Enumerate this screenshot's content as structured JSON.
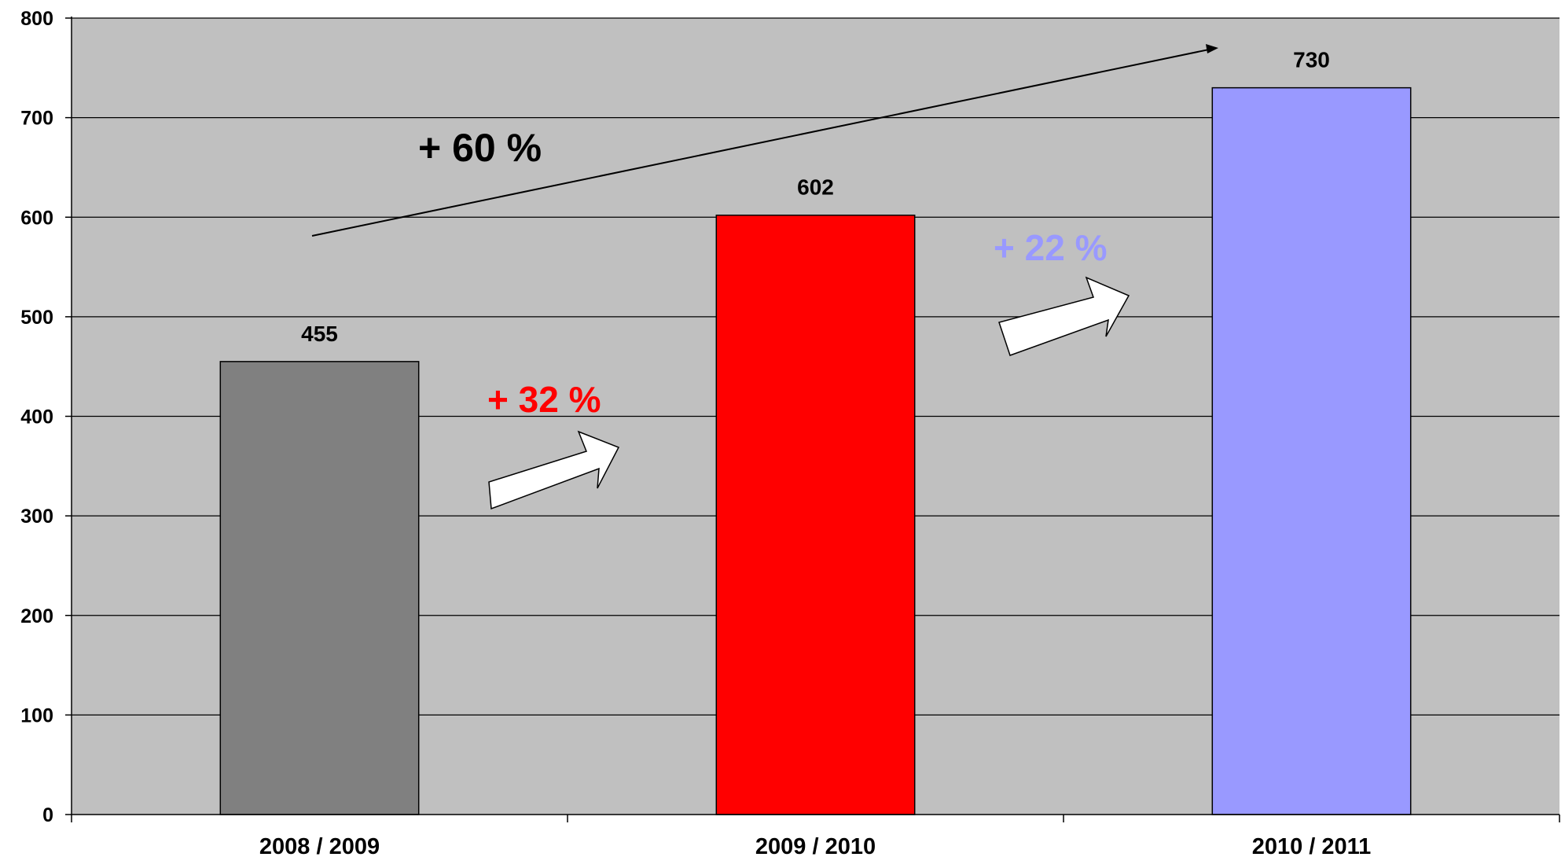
{
  "chart_data": {
    "type": "bar",
    "categories": [
      "2008 / 2009",
      "2009 / 2010",
      "2010 / 2011"
    ],
    "values": [
      455,
      602,
      730
    ],
    "data_labels": [
      "455",
      "602",
      "730"
    ],
    "bar_colors": [
      "#808080",
      "#ff0000",
      "#9999ff"
    ],
    "ylim": [
      0,
      800
    ],
    "yticks": [
      0,
      100,
      200,
      300,
      400,
      500,
      600,
      700,
      800
    ],
    "ytick_labels": [
      "0",
      "100",
      "200",
      "300",
      "400",
      "500",
      "600",
      "700",
      "800"
    ],
    "grid": true,
    "plot_background": "#c0c0c0",
    "legend": "none",
    "xlabel": "",
    "ylabel": "",
    "title": "",
    "annotations": [
      {
        "text": "+ 60 %",
        "color": "#000000"
      },
      {
        "text": "+ 32 %",
        "color": "#ff0000"
      },
      {
        "text": "+ 22 %",
        "color": "#9999ff"
      }
    ]
  }
}
